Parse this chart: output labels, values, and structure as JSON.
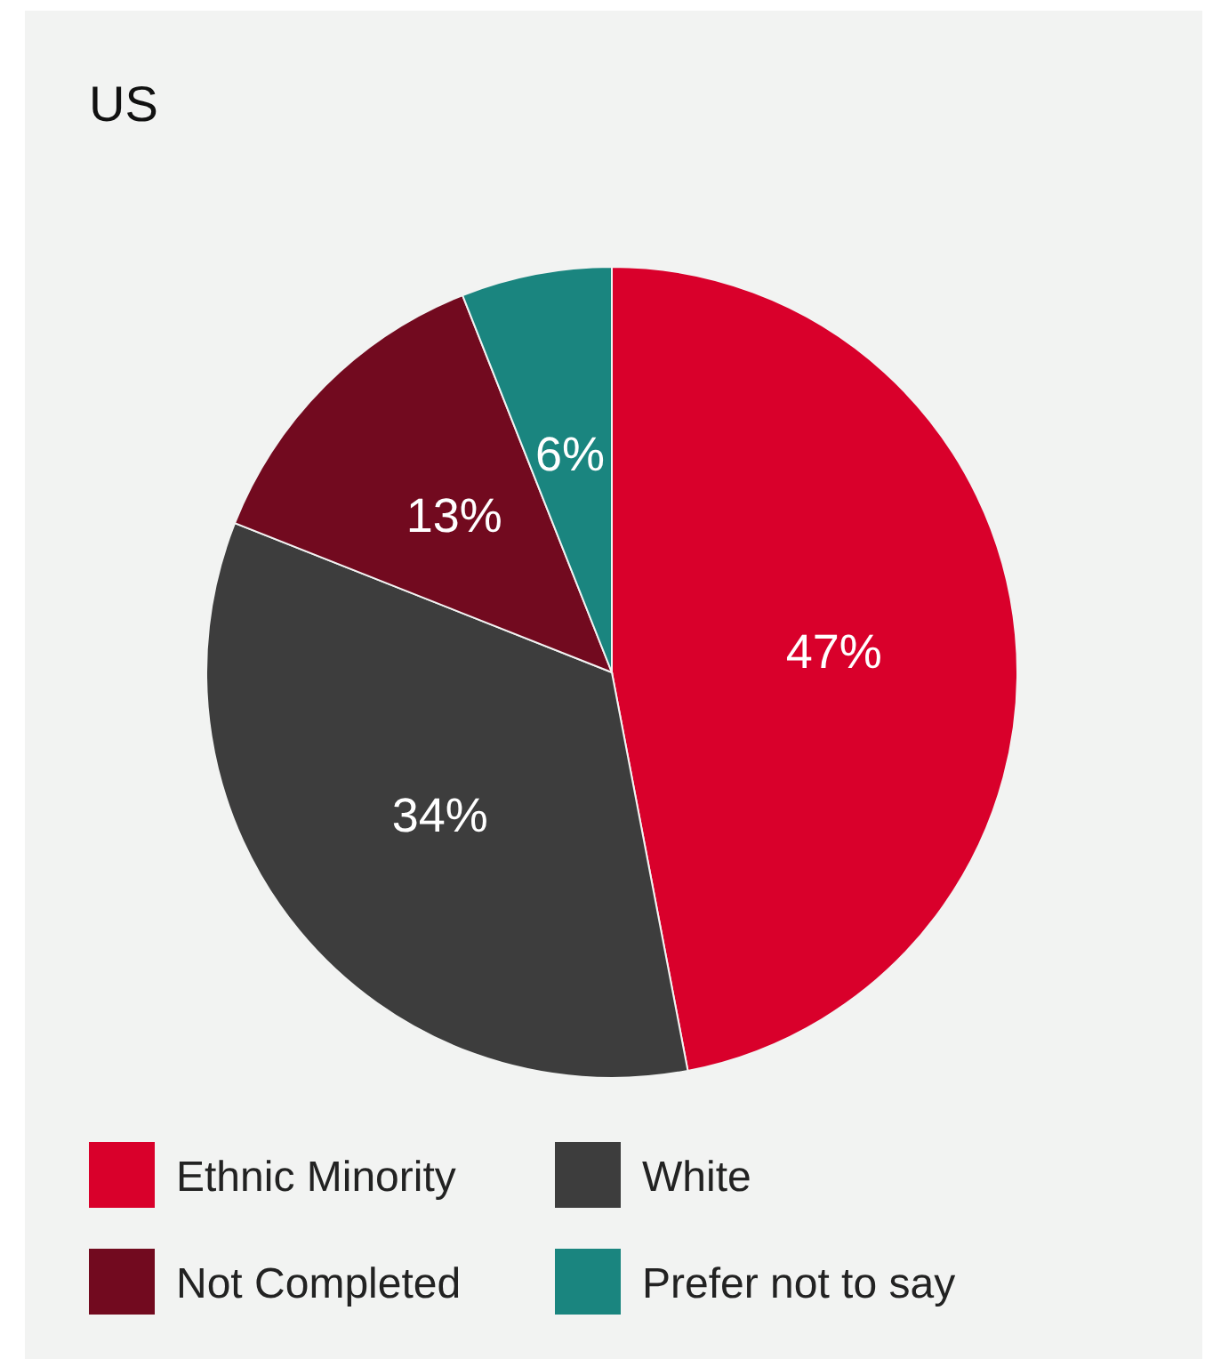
{
  "chart_data": {
    "type": "pie",
    "title": "US",
    "categories": [
      "Ethnic Minority",
      "White",
      "Not Completed",
      "Prefer not to say"
    ],
    "values": [
      47,
      34,
      13,
      6
    ],
    "value_labels": [
      "47%",
      "34%",
      "13%",
      "6%"
    ],
    "colors": [
      "#d9002b",
      "#3d3d3d",
      "#720a1f",
      "#1a857f"
    ],
    "legend": "bottom"
  }
}
